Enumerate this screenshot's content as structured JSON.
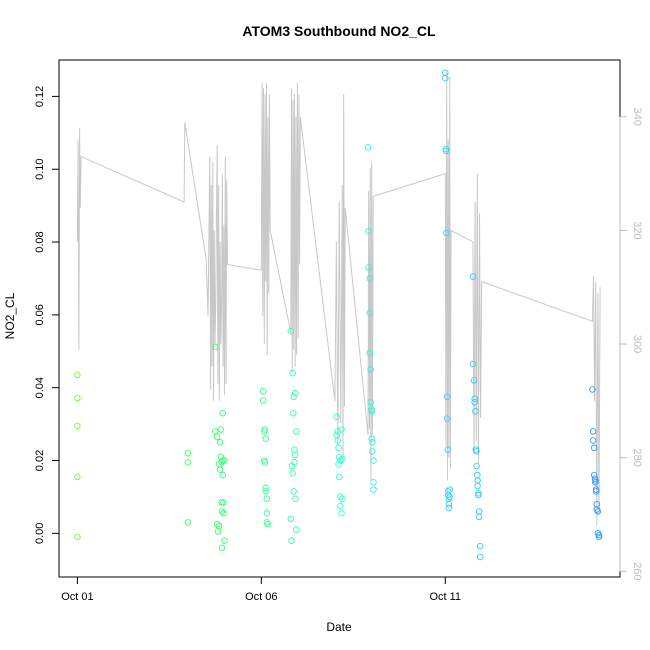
{
  "chart_data": {
    "type": "scatter",
    "title": "ATOM3 Southbound NO2_CL",
    "xlabel": "Date",
    "ylabel": "NO2_CL",
    "x_ticks": [
      {
        "label": "Oct 01",
        "day": 1
      },
      {
        "label": "Oct 06",
        "day": 6
      },
      {
        "label": "Oct 11",
        "day": 11
      }
    ],
    "x_range_days": [
      0.5,
      15.75
    ],
    "y_ticks": [
      0.0,
      0.02,
      0.04,
      0.06,
      0.08,
      0.1,
      0.12
    ],
    "y_tick_labels": [
      "0.00",
      "0.02",
      "0.04",
      "0.06",
      "0.08",
      "0.10",
      "0.12"
    ],
    "ylim": [
      -0.012,
      0.13
    ],
    "y2_ticks": [
      260,
      280,
      300,
      320,
      340
    ],
    "y2_tick_labels": [
      "260",
      "280",
      "300",
      "320",
      "340"
    ],
    "y2lim": [
      259,
      350
    ],
    "grid": false,
    "legend": "none",
    "colors": {
      "point_gradient": [
        "#66ff33",
        "#33ff66",
        "#33ffcc",
        "#33ccff",
        "#3399ff"
      ],
      "secondary_line": "#c8c8c8",
      "axis": "#000000",
      "secondary_axis": "#bdbdbd"
    },
    "series": [
      {
        "kind": "points",
        "x_days": [
          1.0,
          1.0,
          1.0,
          1.0,
          1.0,
          4.0,
          4.0,
          4.0,
          4.75,
          4.75,
          4.8,
          4.8,
          4.82,
          4.85,
          4.85,
          4.88,
          4.88,
          4.9,
          4.9,
          4.92,
          4.92,
          4.93,
          4.93,
          4.95,
          4.95,
          4.95,
          4.97,
          4.97,
          5.0,
          5.0,
          6.05,
          6.05,
          6.08,
          6.08,
          6.1,
          6.1,
          6.12,
          6.12,
          6.12,
          6.15,
          6.15,
          6.15,
          6.18,
          6.8,
          6.8,
          6.82,
          6.83,
          6.85,
          6.85,
          6.87,
          6.88,
          6.88,
          6.9,
          6.9,
          6.92,
          6.92,
          6.93,
          6.95,
          6.95,
          8.05,
          8.05,
          8.08,
          8.08,
          8.1,
          8.1,
          8.12,
          8.12,
          8.15,
          8.15,
          8.15,
          8.18,
          8.18,
          8.2,
          8.2,
          8.9,
          8.92,
          8.92,
          8.95,
          8.95,
          8.95,
          8.97,
          8.97,
          9.0,
          9.0,
          9.0,
          9.02,
          9.02,
          9.05,
          9.05,
          9.05,
          11.0,
          11.0,
          11.02,
          11.02,
          11.03,
          11.05,
          11.05,
          11.07,
          11.08,
          11.08,
          11.1,
          11.1,
          11.1,
          11.12,
          11.12,
          11.75,
          11.75,
          11.78,
          11.8,
          11.8,
          11.82,
          11.83,
          11.85,
          11.85,
          11.87,
          11.88,
          11.88,
          11.9,
          11.9,
          11.92,
          11.92,
          11.95,
          11.95,
          15.0,
          15.02,
          15.02,
          15.05,
          15.05,
          15.07,
          15.08,
          15.08,
          15.1,
          15.1,
          15.12,
          15.12,
          15.15,
          15.15,
          15.18,
          15.18
        ],
        "y": [
          0.0435,
          0.0372,
          0.0295,
          0.0155,
          -0.001,
          0.022,
          0.0195,
          0.003,
          0.0512,
          0.028,
          0.0265,
          0.0025,
          0.0005,
          0.019,
          0.002,
          0.0175,
          0.025,
          0.0285,
          0.021,
          0.0195,
          0.0085,
          0.006,
          -0.004,
          0.033,
          0.016,
          0.02,
          0.0085,
          0.0055,
          0.02,
          -0.002,
          0.0365,
          0.039,
          0.028,
          0.02,
          0.0285,
          0.0195,
          0.0125,
          0.0115,
          0.026,
          0.0095,
          0.0055,
          0.003,
          0.0025,
          0.0555,
          0.004,
          -0.002,
          0.0185,
          0.0165,
          0.044,
          0.033,
          0.0375,
          0.0115,
          0.023,
          0.0195,
          0.0385,
          0.0215,
          0.0095,
          0.001,
          0.028,
          0.032,
          0.027,
          0.028,
          0.0255,
          0.019,
          0.0235,
          0.021,
          0.0155,
          0.02,
          0.01,
          0.0075,
          0.0285,
          0.0055,
          0.0205,
          0.0095,
          0.106,
          0.083,
          0.073,
          0.07,
          0.0605,
          0.0495,
          0.045,
          0.036,
          0.034,
          0.0335,
          0.026,
          0.025,
          0.0225,
          0.02,
          0.014,
          0.012,
          0.1265,
          0.125,
          0.1055,
          0.105,
          0.0825,
          0.0375,
          0.0315,
          0.023,
          0.0115,
          0.0105,
          0.0095,
          0.007,
          0.008,
          0.01,
          0.012,
          0.0705,
          0.0465,
          0.042,
          0.037,
          0.036,
          0.0335,
          0.023,
          0.0225,
          0.0185,
          0.016,
          0.0145,
          0.013,
          0.011,
          0.0105,
          0.006,
          0.0045,
          -0.0035,
          -0.0065,
          0.0395,
          0.028,
          0.0255,
          0.0235,
          0.016,
          0.015,
          0.0145,
          0.014,
          0.012,
          0.0115,
          0.008,
          0.0065,
          0.006,
          0.0,
          -0.001,
          -0.0005
        ]
      },
      {
        "kind": "secondary-line",
        "axis": "right",
        "x_days": [
          1.0,
          1.02,
          1.04,
          1.06,
          1.08,
          1.1,
          3.9,
          3.92,
          4.5,
          4.55,
          4.6,
          4.62,
          4.64,
          4.66,
          4.68,
          4.7,
          4.72,
          4.74,
          4.76,
          4.78,
          4.8,
          4.82,
          4.84,
          4.86,
          4.88,
          4.9,
          4.92,
          4.94,
          4.96,
          4.98,
          5.0,
          5.02,
          5.04,
          5.06,
          5.08,
          6.0,
          6.02,
          6.04,
          6.06,
          6.08,
          6.1,
          6.12,
          6.14,
          6.16,
          6.18,
          6.2,
          6.22,
          6.24,
          6.8,
          6.82,
          6.84,
          6.86,
          6.88,
          6.9,
          6.92,
          6.94,
          6.96,
          6.98,
          7.0,
          7.02,
          7.04,
          7.06,
          8.0,
          8.04,
          8.08,
          8.12,
          8.16,
          8.2,
          8.22,
          8.24,
          8.26,
          8.28,
          8.9,
          8.92,
          8.94,
          8.96,
          8.98,
          9.0,
          9.02,
          9.04,
          11.0,
          11.02,
          11.04,
          11.06,
          11.08,
          11.1,
          11.12,
          11.14,
          11.16,
          11.75,
          11.78,
          11.81,
          11.84,
          11.87,
          11.9,
          11.93,
          11.96,
          11.99,
          15.0,
          15.03,
          15.06,
          15.09,
          15.12,
          15.15,
          15.18,
          15.21
        ],
        "y": [
          318,
          336,
          299,
          338,
          324,
          333,
          325,
          339,
          315,
          305,
          333,
          292,
          328,
          296,
          332,
          290,
          320,
          300,
          306,
          322,
          335,
          293,
          328,
          290,
          318,
          300,
          307,
          330,
          296,
          321,
          291,
          333,
          293,
          329,
          314,
          313,
          346,
          305,
          345,
          300,
          344,
          311,
          346,
          298,
          340,
          309,
          344,
          320,
          302,
          345,
          295,
          343,
          299,
          344,
          296,
          340,
          298,
          346,
          301,
          344,
          314,
          340,
          290,
          318,
          282,
          325,
          286,
          328,
          279,
          344,
          289,
          324,
          284,
          327,
          285,
          331,
          276,
          332,
          284,
          326,
          330,
          282,
          348,
          276,
          336,
          280,
          347,
          278,
          320,
          318,
          281,
          325,
          283,
          330,
          279,
          323,
          287,
          311,
          304,
          312,
          290,
          311,
          268,
          309,
          270,
          310
        ]
      }
    ]
  }
}
